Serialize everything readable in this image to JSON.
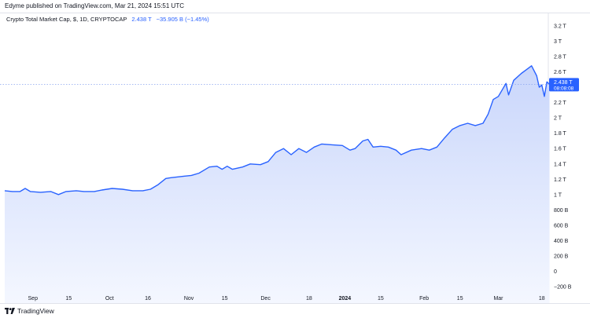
{
  "header": {
    "published": "Edyme published on TradingView.com, Mar 21, 2024 15:51 UTC"
  },
  "legend": {
    "symbol": "Crypto Total Market Cap, $, 1D, CRYPTOCAP",
    "last": "2.438 T",
    "change": "−35.905 B (−1.45%)"
  },
  "price_label": {
    "value": "2.438 T",
    "countdown": "08:08:08",
    "color": "#2962ff"
  },
  "footer": {
    "brand": "TradingView"
  },
  "colors": {
    "line": "#2962ff",
    "fill_top": "#c9d6fb",
    "fill_bottom": "#f4f7ff",
    "grid_text": "#131722"
  },
  "chart_data": {
    "type": "area",
    "title": "Crypto Total Market Cap, $, 1D, CRYPTOCAP",
    "unit": "T",
    "ylim": [
      -0.2,
      3.3
    ],
    "y_ticks": [
      {
        "v": 3.2,
        "label": "3.2 T"
      },
      {
        "v": 3.0,
        "label": "3 T"
      },
      {
        "v": 2.8,
        "label": "2.8 T"
      },
      {
        "v": 2.6,
        "label": "2.6 T"
      },
      {
        "v": 2.2,
        "label": "2.2 T"
      },
      {
        "v": 2.0,
        "label": "2 T"
      },
      {
        "v": 1.8,
        "label": "1.8 T"
      },
      {
        "v": 1.6,
        "label": "1.6 T"
      },
      {
        "v": 1.4,
        "label": "1.4 T"
      },
      {
        "v": 1.2,
        "label": "1.2 T"
      },
      {
        "v": 1.0,
        "label": "1 T"
      },
      {
        "v": 0.8,
        "label": "800 B"
      },
      {
        "v": 0.6,
        "label": "600 B"
      },
      {
        "v": 0.4,
        "label": "400 B"
      },
      {
        "v": 0.2,
        "label": "200 B"
      },
      {
        "v": 0.0,
        "label": "0"
      },
      {
        "v": -0.2,
        "label": "−200 B"
      }
    ],
    "x_range": [
      "2023-08-21",
      "2024-03-27"
    ],
    "x_ticks": [
      {
        "date": "2023-09-01",
        "label": "Sep",
        "bold": false
      },
      {
        "date": "2023-09-15",
        "label": "15",
        "bold": false
      },
      {
        "date": "2023-10-01",
        "label": "Oct",
        "bold": false
      },
      {
        "date": "2023-10-16",
        "label": "16",
        "bold": false
      },
      {
        "date": "2023-11-01",
        "label": "Nov",
        "bold": false
      },
      {
        "date": "2023-11-15",
        "label": "15",
        "bold": false
      },
      {
        "date": "2023-12-01",
        "label": "Dec",
        "bold": false
      },
      {
        "date": "2023-12-18",
        "label": "18",
        "bold": false
      },
      {
        "date": "2024-01-01",
        "label": "2024",
        "bold": true
      },
      {
        "date": "2024-01-15",
        "label": "15",
        "bold": false
      },
      {
        "date": "2024-02-01",
        "label": "Feb",
        "bold": false
      },
      {
        "date": "2024-02-15",
        "label": "15",
        "bold": false
      },
      {
        "date": "2024-03-01",
        "label": "Mar",
        "bold": false
      },
      {
        "date": "2024-03-18",
        "label": "18",
        "bold": false
      }
    ],
    "last_value": 2.438,
    "series": [
      {
        "points": [
          [
            "2023-08-21",
            1.05
          ],
          [
            "2023-08-24",
            1.04
          ],
          [
            "2023-08-27",
            1.04
          ],
          [
            "2023-08-29",
            1.08
          ],
          [
            "2023-08-31",
            1.04
          ],
          [
            "2023-09-04",
            1.03
          ],
          [
            "2023-09-08",
            1.04
          ],
          [
            "2023-09-11",
            1.0
          ],
          [
            "2023-09-14",
            1.04
          ],
          [
            "2023-09-18",
            1.05
          ],
          [
            "2023-09-21",
            1.04
          ],
          [
            "2023-09-25",
            1.04
          ],
          [
            "2023-09-28",
            1.06
          ],
          [
            "2023-10-02",
            1.08
          ],
          [
            "2023-10-06",
            1.07
          ],
          [
            "2023-10-10",
            1.05
          ],
          [
            "2023-10-14",
            1.05
          ],
          [
            "2023-10-17",
            1.07
          ],
          [
            "2023-10-20",
            1.13
          ],
          [
            "2023-10-23",
            1.21
          ],
          [
            "2023-10-25",
            1.22
          ],
          [
            "2023-10-30",
            1.24
          ],
          [
            "2023-11-02",
            1.25
          ],
          [
            "2023-11-05",
            1.28
          ],
          [
            "2023-11-09",
            1.36
          ],
          [
            "2023-11-12",
            1.37
          ],
          [
            "2023-11-14",
            1.33
          ],
          [
            "2023-11-16",
            1.37
          ],
          [
            "2023-11-18",
            1.33
          ],
          [
            "2023-11-22",
            1.36
          ],
          [
            "2023-11-25",
            1.4
          ],
          [
            "2023-11-29",
            1.39
          ],
          [
            "2023-12-02",
            1.43
          ],
          [
            "2023-12-05",
            1.55
          ],
          [
            "2023-12-08",
            1.6
          ],
          [
            "2023-12-11",
            1.52
          ],
          [
            "2023-12-14",
            1.6
          ],
          [
            "2023-12-17",
            1.55
          ],
          [
            "2023-12-20",
            1.62
          ],
          [
            "2023-12-23",
            1.66
          ],
          [
            "2023-12-27",
            1.65
          ],
          [
            "2023-12-31",
            1.64
          ],
          [
            "2024-01-03",
            1.58
          ],
          [
            "2024-01-05",
            1.6
          ],
          [
            "2024-01-08",
            1.7
          ],
          [
            "2024-01-10",
            1.72
          ],
          [
            "2024-01-12",
            1.62
          ],
          [
            "2024-01-15",
            1.63
          ],
          [
            "2024-01-18",
            1.62
          ],
          [
            "2024-01-21",
            1.58
          ],
          [
            "2024-01-23",
            1.52
          ],
          [
            "2024-01-27",
            1.58
          ],
          [
            "2024-01-31",
            1.6
          ],
          [
            "2024-02-03",
            1.58
          ],
          [
            "2024-02-06",
            1.62
          ],
          [
            "2024-02-09",
            1.74
          ],
          [
            "2024-02-12",
            1.85
          ],
          [
            "2024-02-15",
            1.9
          ],
          [
            "2024-02-18",
            1.93
          ],
          [
            "2024-02-21",
            1.9
          ],
          [
            "2024-02-24",
            1.93
          ],
          [
            "2024-02-26",
            2.05
          ],
          [
            "2024-02-28",
            2.24
          ],
          [
            "2024-03-01",
            2.28
          ],
          [
            "2024-03-04",
            2.45
          ],
          [
            "2024-03-05",
            2.3
          ],
          [
            "2024-03-07",
            2.49
          ],
          [
            "2024-03-10",
            2.58
          ],
          [
            "2024-03-12",
            2.63
          ],
          [
            "2024-03-14",
            2.68
          ],
          [
            "2024-03-16",
            2.55
          ],
          [
            "2024-03-17",
            2.4
          ],
          [
            "2024-03-18",
            2.43
          ],
          [
            "2024-03-19",
            2.28
          ],
          [
            "2024-03-20",
            2.47
          ],
          [
            "2024-03-21",
            2.438
          ]
        ]
      }
    ]
  }
}
